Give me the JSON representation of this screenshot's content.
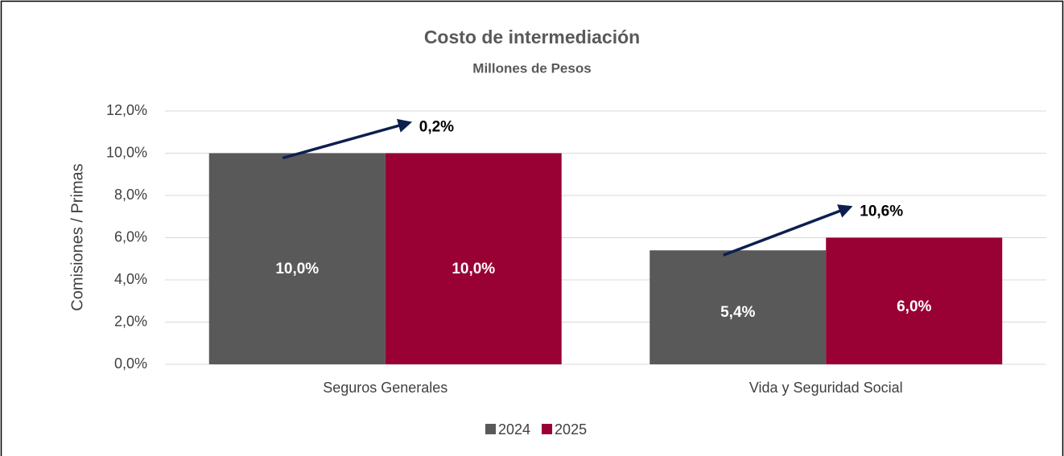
{
  "chart_data": {
    "type": "bar",
    "title": "Costo de intermediación",
    "subtitle": "Millones de Pesos",
    "y_label": "Comisiones / Primas",
    "categories": [
      "Seguros Generales",
      "Vida y Seguridad Social"
    ],
    "series": [
      {
        "name": "2024",
        "color": "#595959",
        "values": [
          10.0,
          5.4
        ],
        "value_labels": [
          "10,0%",
          "5,4%"
        ]
      },
      {
        "name": "2025",
        "color": "#990033",
        "values": [
          10.0,
          6.0
        ],
        "value_labels": [
          "10,0%",
          "6,0%"
        ]
      }
    ],
    "annotations": [
      "0,2%",
      "10,6%"
    ],
    "ylim": [
      0,
      12
    ],
    "yticks": [
      {
        "value": 0,
        "label": "0,0%"
      },
      {
        "value": 2,
        "label": "2,0%"
      },
      {
        "value": 4,
        "label": "4,0%"
      },
      {
        "value": 6,
        "label": "6,0%"
      },
      {
        "value": 8,
        "label": "8,0%"
      },
      {
        "value": 10,
        "label": "10,0%"
      },
      {
        "value": 12,
        "label": "12,0%"
      }
    ],
    "grid": true,
    "legend": "bottom"
  }
}
